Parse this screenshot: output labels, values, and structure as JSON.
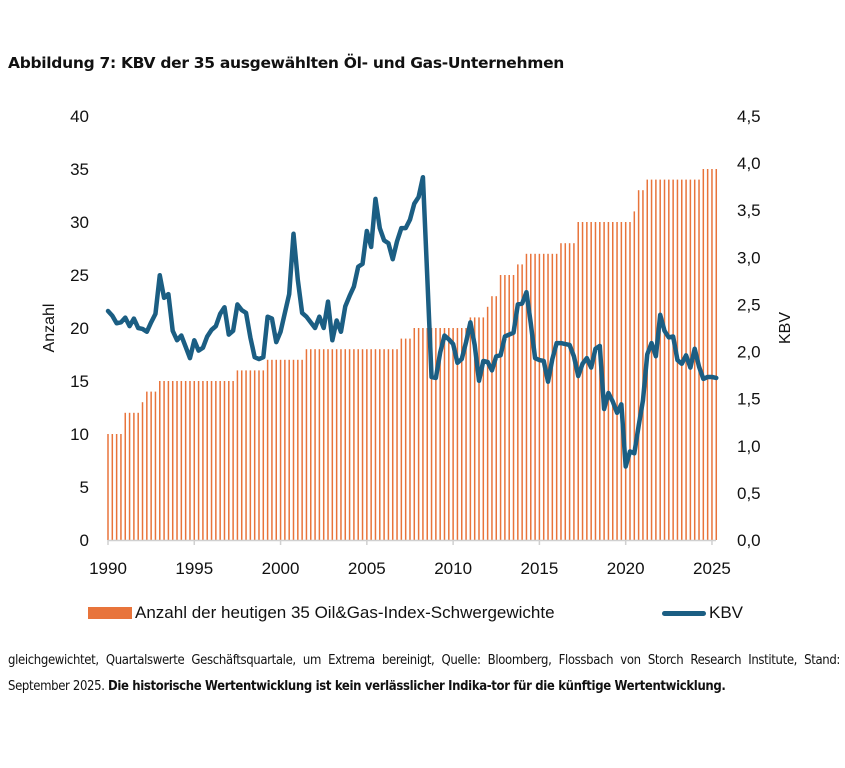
{
  "title": "Abbildung 7: KBV der 35 ausgewählten Öl- und Gas-Unternehmen",
  "chart_data": {
    "type": "bar+line",
    "title": "Abbildung 7: KBV der 35 ausgewählten Öl- und Gas-Unternehmen",
    "frequency": "quarterly",
    "x_start": "1990Q1",
    "x_end": "2025Q2",
    "xlabel": "",
    "x_ticks": [
      "1990",
      "1995",
      "2000",
      "2005",
      "2010",
      "2015",
      "2020",
      "2025"
    ],
    "y_left": {
      "label": "Anzahl",
      "lim": [
        0,
        40
      ],
      "ticks": [
        "0",
        "5",
        "10",
        "15",
        "20",
        "25",
        "30",
        "35",
        "40"
      ]
    },
    "y_right": {
      "label": "KBV",
      "lim": [
        0,
        4.5
      ],
      "ticks": [
        "0,0",
        "0,5",
        "1,0",
        "1,5",
        "2,0",
        "2,5",
        "3,0",
        "3,5",
        "4,0",
        "4,5"
      ]
    },
    "grid": false,
    "legend_position": "bottom",
    "series": [
      {
        "name": "Anzahl der heutigen 35 Oil&Gas-Index-Schwergewichte",
        "type": "bar",
        "axis": "left",
        "color": "#E8743B",
        "values": [
          10,
          10,
          10,
          10,
          12,
          12,
          12,
          12,
          13,
          14,
          14,
          14,
          15,
          15,
          15,
          15,
          15,
          15,
          15,
          15,
          15,
          15,
          15,
          15,
          15,
          15,
          15,
          15,
          15,
          15,
          16,
          16,
          16,
          16,
          16,
          16,
          16,
          17,
          17,
          17,
          17,
          17,
          17,
          17,
          17,
          17,
          18,
          18,
          18,
          18,
          18,
          18,
          18,
          18,
          18,
          18,
          18,
          18,
          18,
          18,
          18,
          18,
          18,
          18,
          18,
          18,
          18,
          18,
          19,
          19,
          19,
          20,
          20,
          20,
          20,
          20,
          20,
          20,
          20,
          20,
          20,
          20,
          20,
          20,
          21,
          21,
          21,
          21,
          22,
          23,
          23,
          25,
          25,
          25,
          25,
          26,
          26,
          27,
          27,
          27,
          27,
          27,
          27,
          27,
          27,
          28,
          28,
          28,
          28,
          30,
          30,
          30,
          30,
          30,
          30,
          30,
          30,
          30,
          30,
          30,
          30,
          30,
          31,
          33,
          33,
          34,
          34,
          34,
          34,
          34,
          34,
          34,
          34,
          34,
          34,
          34,
          34,
          34,
          35,
          35,
          35,
          35
        ]
      },
      {
        "name": "KBV",
        "type": "line",
        "axis": "right",
        "color": "#1B5E83",
        "values": [
          2.43,
          2.38,
          2.3,
          2.31,
          2.36,
          2.27,
          2.35,
          2.25,
          2.24,
          2.21,
          2.31,
          2.4,
          2.81,
          2.57,
          2.61,
          2.22,
          2.12,
          2.17,
          2.05,
          1.93,
          2.12,
          2.01,
          2.04,
          2.16,
          2.23,
          2.27,
          2.4,
          2.47,
          2.18,
          2.22,
          2.5,
          2.44,
          2.41,
          2.15,
          1.94,
          1.92,
          1.94,
          2.37,
          2.35,
          2.1,
          2.21,
          2.41,
          2.61,
          3.25,
          2.76,
          2.41,
          2.37,
          2.31,
          2.25,
          2.37,
          2.25,
          2.53,
          2.12,
          2.33,
          2.21,
          2.48,
          2.59,
          2.69,
          2.9,
          2.93,
          3.28,
          3.11,
          3.62,
          3.31,
          3.18,
          3.15,
          2.98,
          3.17,
          3.31,
          3.31,
          3.4,
          3.57,
          3.64,
          3.85,
          2.8,
          1.73,
          1.72,
          1.99,
          2.17,
          2.13,
          2.08,
          1.88,
          1.92,
          2.1,
          2.31,
          2.07,
          1.69,
          1.9,
          1.89,
          1.8,
          1.95,
          1.96,
          2.16,
          2.18,
          2.2,
          2.5,
          2.51,
          2.63,
          2.3,
          1.93,
          1.91,
          1.9,
          1.68,
          1.92,
          2.09,
          2.09,
          2.08,
          2.07,
          1.95,
          1.74,
          1.87,
          1.93,
          1.83,
          2.03,
          2.06,
          1.39,
          1.56,
          1.47,
          1.35,
          1.44,
          0.78,
          0.94,
          0.92,
          1.21,
          1.48,
          1.97,
          2.09,
          1.95,
          2.39,
          2.22,
          2.15,
          2.16,
          1.91,
          1.87,
          1.96,
          1.83,
          2.03,
          1.84,
          1.71,
          1.73,
          1.73,
          1.72
        ]
      }
    ]
  },
  "legend": {
    "bar_label": "Anzahl der heutigen 35 Oil&Gas-Index-Schwergewichte",
    "line_label": "KBV"
  },
  "footnote": {
    "normal": "gleichgewichtet, Quartalswerte Geschäftsquartale, um Extrema bereinigt, Quelle: Bloomberg, Flossbach von Storch Research Institute, Stand: September 2025. ",
    "bold": "Die historische Wertentwicklung ist kein verlässlicher Indika-tor für die künftige Wertentwicklung."
  }
}
